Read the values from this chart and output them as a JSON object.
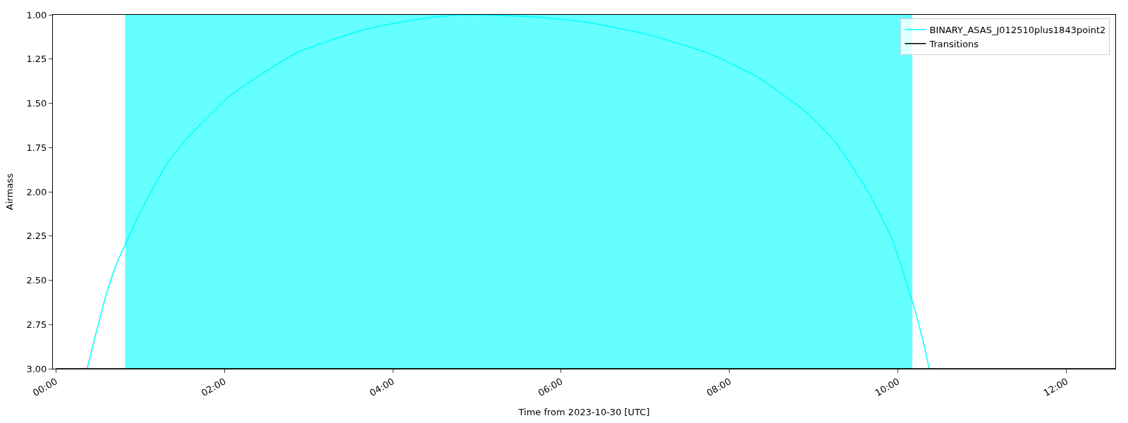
{
  "chart_data": {
    "type": "line",
    "xlabel": "Time from 2023-10-30 [UTC]",
    "ylabel": "Airmass",
    "xlim": [
      -0.035,
      12.58
    ],
    "xticks": [
      {
        "value": 0,
        "label": "00:00"
      },
      {
        "value": 2,
        "label": "02:00"
      },
      {
        "value": 4,
        "label": "04:00"
      },
      {
        "value": 6,
        "label": "06:00"
      },
      {
        "value": 8,
        "label": "08:00"
      },
      {
        "value": 10,
        "label": "10:00"
      },
      {
        "value": 12,
        "label": "12:00"
      }
    ],
    "ylim": [
      3.0,
      1.0
    ],
    "yticks": [
      {
        "value": 1,
        "label": "1.00"
      },
      {
        "value": 1.25,
        "label": "1.25"
      },
      {
        "value": 1.5,
        "label": "1.50"
      },
      {
        "value": 1.75,
        "label": "1.75"
      },
      {
        "value": 2,
        "label": "2.00"
      },
      {
        "value": 2.25,
        "label": "2.25"
      },
      {
        "value": 2.5,
        "label": "2.50"
      },
      {
        "value": 2.75,
        "label": "2.75"
      },
      {
        "value": 3,
        "label": "3.00"
      }
    ],
    "bands": [
      {
        "axis": "x",
        "from": 0.823,
        "to": 10.17,
        "color": "#66ffff"
      }
    ],
    "series": [
      {
        "name": "BINARY_ASAS_J012510plus1843point2",
        "color": "#00ffff",
        "x": [
          0.371,
          0.477,
          0.605,
          0.727,
          0.823,
          0.957,
          1.118,
          1.31,
          1.534,
          1.758,
          2.014,
          2.27,
          2.558,
          2.879,
          3.231,
          3.615,
          4.0,
          4.383,
          4.857,
          5.633,
          6.268,
          7.016,
          7.762,
          8.323,
          8.883,
          9.257,
          9.631,
          9.93,
          10.183,
          10.296,
          10.37
        ],
        "values": [
          3.0,
          2.8,
          2.57,
          2.4,
          2.3,
          2.16,
          2.01,
          1.85,
          1.71,
          1.6,
          1.48,
          1.39,
          1.3,
          1.21,
          1.15,
          1.09,
          1.05,
          1.02,
          1.0,
          1.01,
          1.04,
          1.11,
          1.22,
          1.35,
          1.54,
          1.72,
          1.99,
          2.27,
          2.64,
          2.84,
          3.0
        ]
      },
      {
        "name": "Transitions",
        "color": "#000000",
        "x": [
          0.0,
          12.58
        ],
        "values": [
          3.0,
          3.0
        ]
      }
    ],
    "legend": "top right",
    "grid": false,
    "line_style": "solid",
    "marker": "none"
  }
}
